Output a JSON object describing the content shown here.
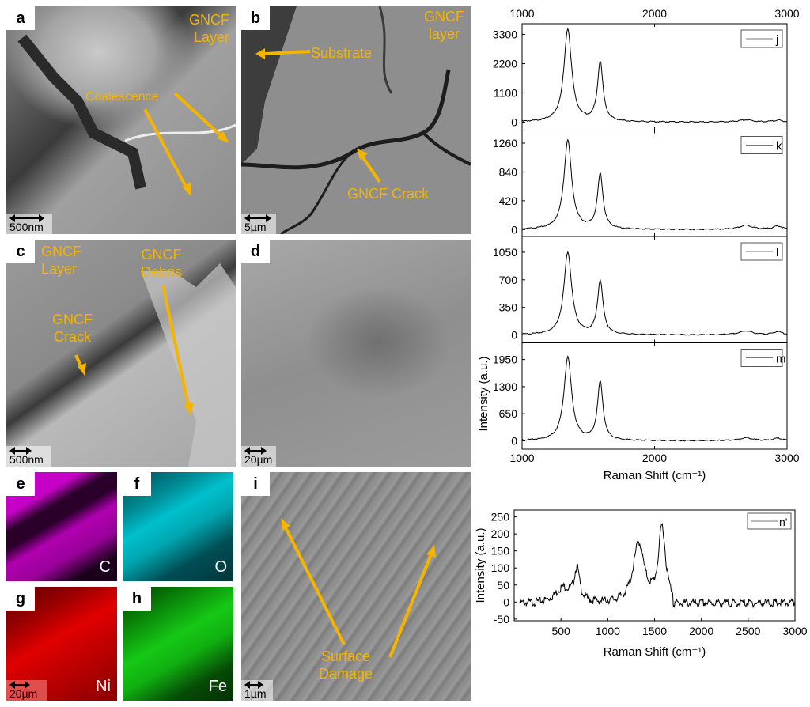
{
  "panels": {
    "a": {
      "letter": "a",
      "ann": [
        "GNCF",
        "Layer"
      ],
      "coalescence": "Coalescence",
      "scale": "500nm"
    },
    "b": {
      "letter": "b",
      "ann": [
        "GNCF",
        "layer"
      ],
      "substrate": "Substrate",
      "crack": "GNCF Crack",
      "scale": "5µm"
    },
    "c": {
      "letter": "c",
      "layer": [
        "GNCF",
        "Layer"
      ],
      "debris": [
        "GNCF",
        "Debris"
      ],
      "crack": [
        "GNCF",
        "Crack"
      ],
      "scale": "500nm"
    },
    "d": {
      "letter": "d",
      "scale": "20µm"
    },
    "e": {
      "letter": "e",
      "element": "C",
      "color": "#d400d4"
    },
    "f": {
      "letter": "f",
      "element": "O",
      "color": "#00c8d2"
    },
    "g": {
      "letter": "g",
      "element": "Ni",
      "color": "#e00000",
      "scale": "20µm"
    },
    "h": {
      "letter": "h",
      "element": "Fe",
      "color": "#10c810"
    },
    "i": {
      "letter": "i",
      "damage": [
        "Surface",
        "Damage"
      ],
      "scale": "1µm"
    }
  },
  "chart_data": [
    {
      "type": "line",
      "xlabel": "Raman Shift (cm⁻¹)",
      "ylabel": "Intensity (a.u.)",
      "xlim": [
        1000,
        3000
      ],
      "xticks": [
        1000,
        2000,
        3000
      ],
      "subplots": [
        {
          "legend": "j",
          "yticks": [
            0,
            1100,
            2200,
            3300
          ],
          "ylim": [
            -300,
            3700
          ],
          "peaks": [
            {
              "x": 1345,
              "y": 3500,
              "w": 35
            },
            {
              "x": 1590,
              "y": 2230,
              "w": 25
            },
            {
              "x": 2690,
              "y": 80,
              "w": 60
            },
            {
              "x": 2930,
              "y": 70,
              "w": 40
            }
          ]
        },
        {
          "legend": "k",
          "yticks": [
            0,
            420,
            840,
            1260
          ],
          "ylim": [
            -100,
            1450
          ],
          "peaks": [
            {
              "x": 1345,
              "y": 1300,
              "w": 35
            },
            {
              "x": 1590,
              "y": 800,
              "w": 25
            },
            {
              "x": 2690,
              "y": 60,
              "w": 60
            },
            {
              "x": 2930,
              "y": 50,
              "w": 40
            }
          ]
        },
        {
          "legend": "l",
          "yticks": [
            0,
            350,
            700,
            1050
          ],
          "ylim": [
            -100,
            1250
          ],
          "peaks": [
            {
              "x": 1345,
              "y": 1050,
              "w": 35
            },
            {
              "x": 1590,
              "y": 680,
              "w": 25
            },
            {
              "x": 2690,
              "y": 50,
              "w": 60
            },
            {
              "x": 2930,
              "y": 40,
              "w": 40
            }
          ]
        },
        {
          "legend": "m",
          "yticks": [
            0,
            650,
            1300,
            1950
          ],
          "ylim": [
            -200,
            2350
          ],
          "peaks": [
            {
              "x": 1345,
              "y": 2000,
              "w": 35
            },
            {
              "x": 1590,
              "y": 1400,
              "w": 25
            },
            {
              "x": 2690,
              "y": 70,
              "w": 60
            },
            {
              "x": 2930,
              "y": 60,
              "w": 40
            }
          ]
        }
      ]
    },
    {
      "type": "line",
      "xlabel": "Raman Shift (cm⁻¹)",
      "ylabel": "Intensity (a.u.)",
      "legend": "n'",
      "xlim": [
        0,
        3000
      ],
      "xticks": [
        500,
        1000,
        1500,
        2000,
        2500,
        3000
      ],
      "yticks": [
        -50,
        0,
        50,
        100,
        150,
        200,
        250
      ],
      "ylim": [
        -55,
        270
      ],
      "peaks": [
        {
          "x": 520,
          "y": 45,
          "w": 100
        },
        {
          "x": 670,
          "y": 95,
          "w": 35
        },
        {
          "x": 1330,
          "y": 175,
          "w": 70
        },
        {
          "x": 1580,
          "y": 220,
          "w": 45
        }
      ]
    }
  ]
}
